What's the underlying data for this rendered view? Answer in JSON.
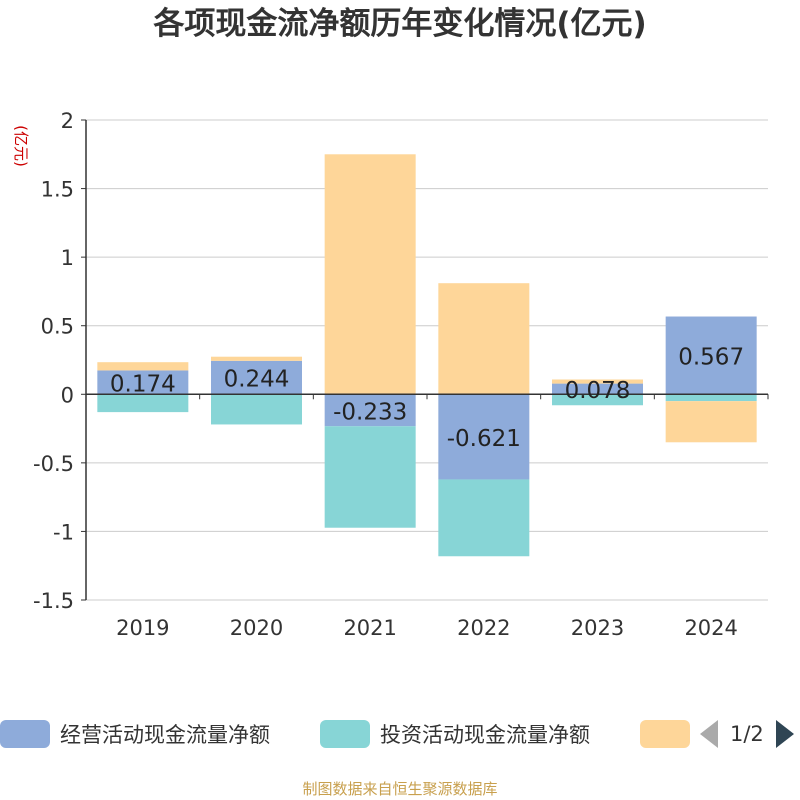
{
  "chart_data": {
    "type": "bar",
    "stacked": true,
    "title": "各项现金流净额历年变化情况(亿元)",
    "ylabel": "(亿元)",
    "categories": [
      "2019",
      "2020",
      "2021",
      "2022",
      "2023",
      "2024"
    ],
    "ylim": [
      -1.5,
      2
    ],
    "yticks": [
      2,
      1.5,
      1,
      0.5,
      0,
      -0.5,
      -1,
      -1.5
    ],
    "ytick_labels": [
      "2",
      "1.5",
      "1",
      "0.5",
      "0",
      "-0.5",
      "-1",
      "-1.5"
    ],
    "grid": true,
    "legend_position": "bottom",
    "series": [
      {
        "name": "经营活动现金流量净额",
        "color": "#8eabda",
        "values": [
          0.174,
          0.244,
          -0.233,
          -0.621,
          0.078,
          0.567
        ],
        "labels": [
          "0.174",
          "0.244",
          "-0.233",
          "-0.621",
          "0.078",
          "0.567"
        ]
      },
      {
        "name": "投资活动现金流量净额",
        "color": "#87d5d6",
        "values": [
          -0.13,
          -0.22,
          -0.74,
          -0.56,
          -0.08,
          -0.05
        ]
      },
      {
        "color": "#fed699",
        "values": [
          0.06,
          0.03,
          1.75,
          0.81,
          0.03,
          -0.3
        ]
      }
    ]
  },
  "legend": {
    "items": [
      {
        "label": "经营活动现金流量净额",
        "color": "#8eabda"
      },
      {
        "label": "投资活动现金流量净额",
        "color": "#87d5d6"
      },
      {
        "label": "",
        "color": "#fed699"
      }
    ],
    "page_text": "1/2"
  },
  "source": "制图数据来自恒生聚源数据库"
}
